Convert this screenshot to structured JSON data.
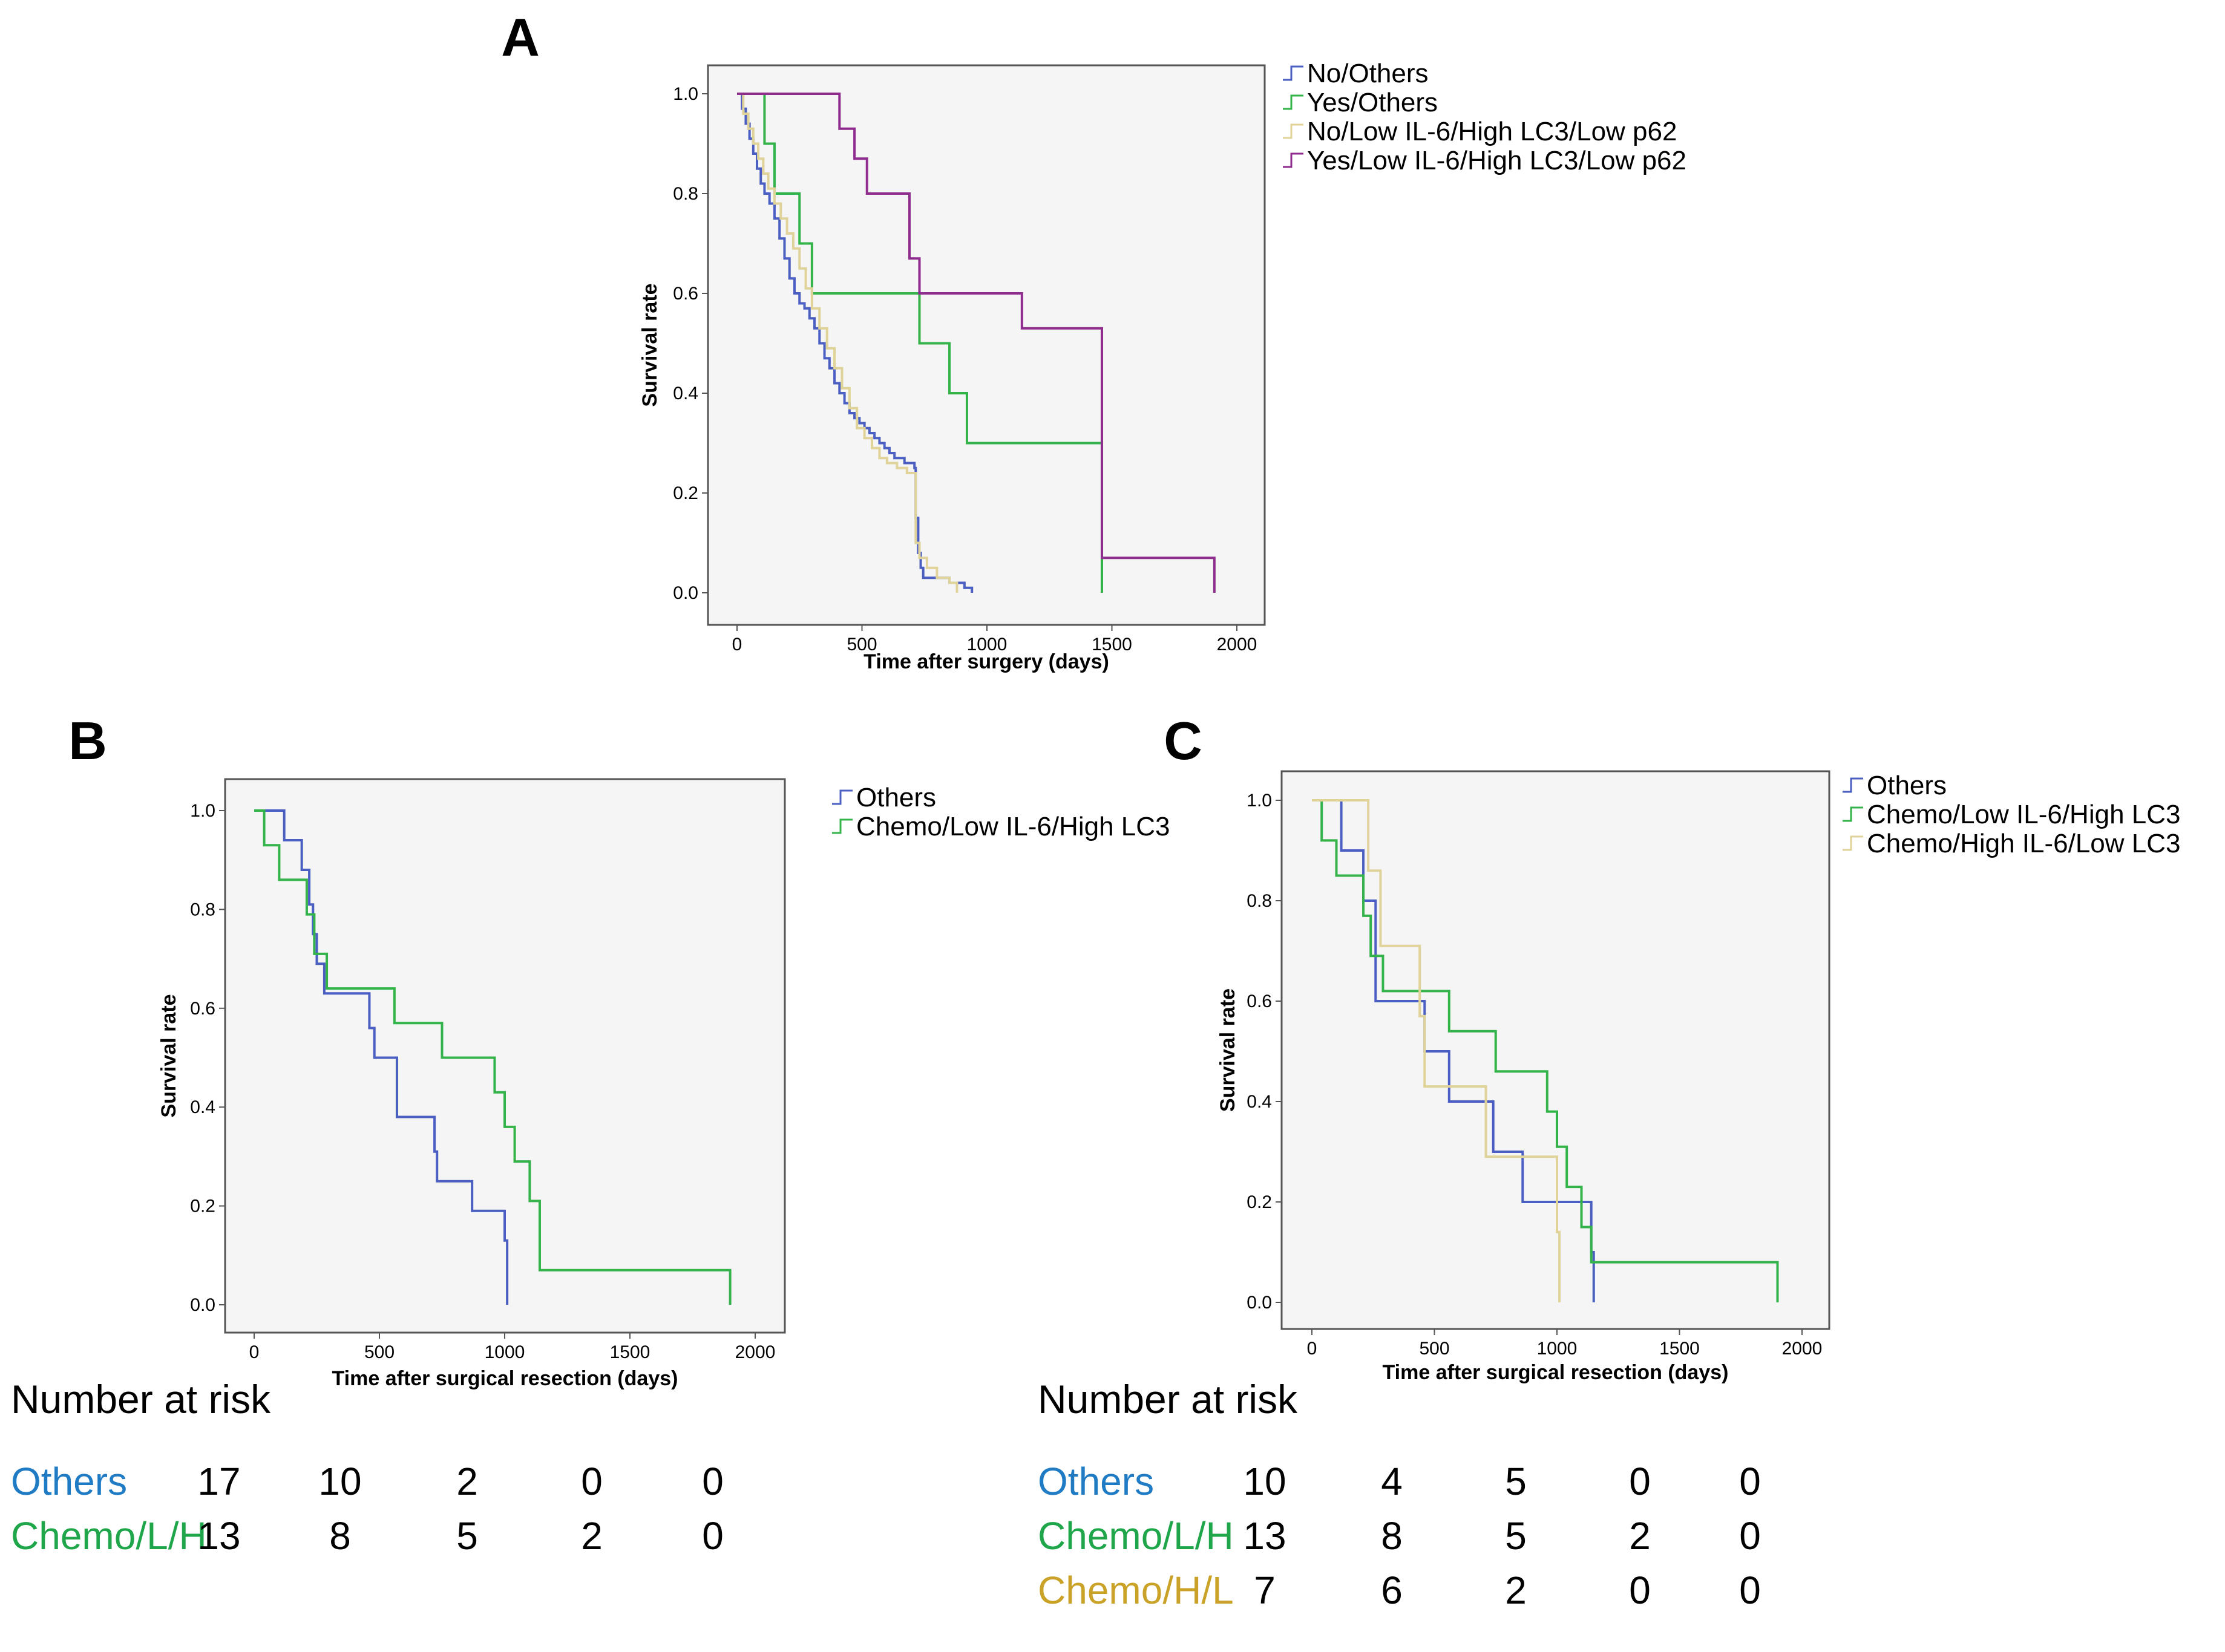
{
  "colors": {
    "blue": "#4a5fc1",
    "green": "#34b34a",
    "beige": "#e0d39a",
    "purple": "#8e2d8e",
    "panel_bg": "#f5f5f5",
    "risk_blue": "#1f7bc4",
    "risk_green": "#1fa64a",
    "risk_gold": "#c9a227"
  },
  "chart_data": [
    {
      "panel": "A",
      "type": "line",
      "subtype": "kaplan-meier step",
      "xlabel": "Time after surgery (days)",
      "ylabel": "Survival rate",
      "xlim": [
        0,
        2000
      ],
      "ylim": [
        0,
        1.0
      ],
      "xticks": [
        "0",
        "500",
        "1000",
        "1500",
        "2000"
      ],
      "yticks": [
        "0.0",
        "0.2",
        "0.4",
        "0.6",
        "0.8",
        "1.0"
      ],
      "legend_position": "right-outside-top",
      "series": [
        {
          "name": "No/Others",
          "color": "blue",
          "x": [
            0,
            20,
            35,
            50,
            65,
            80,
            95,
            110,
            130,
            150,
            170,
            190,
            210,
            230,
            250,
            270,
            290,
            310,
            330,
            350,
            370,
            390,
            410,
            430,
            450,
            470,
            490,
            510,
            530,
            550,
            570,
            590,
            610,
            630,
            650,
            670,
            690,
            710,
            715,
            725,
            735,
            745,
            800,
            850,
            880,
            910,
            940
          ],
          "y": [
            1.0,
            0.97,
            0.94,
            0.91,
            0.88,
            0.85,
            0.82,
            0.8,
            0.78,
            0.75,
            0.71,
            0.67,
            0.63,
            0.6,
            0.58,
            0.57,
            0.55,
            0.53,
            0.5,
            0.47,
            0.45,
            0.42,
            0.4,
            0.38,
            0.36,
            0.35,
            0.34,
            0.33,
            0.32,
            0.31,
            0.3,
            0.29,
            0.28,
            0.27,
            0.27,
            0.26,
            0.26,
            0.25,
            0.15,
            0.08,
            0.05,
            0.03,
            0.03,
            0.02,
            0.02,
            0.01,
            0.0
          ]
        },
        {
          "name": "Yes/Others",
          "color": "green",
          "x": [
            0,
            100,
            110,
            150,
            250,
            300,
            500,
            700,
            730,
            850,
            920,
            1450,
            1460
          ],
          "y": [
            1.0,
            1.0,
            0.9,
            0.8,
            0.7,
            0.6,
            0.6,
            0.6,
            0.5,
            0.4,
            0.3,
            0.3,
            0.0
          ]
        },
        {
          "name": "No/Low IL-6/High LC3/Low p62",
          "color": "beige",
          "x": [
            0,
            25,
            45,
            65,
            85,
            105,
            125,
            150,
            175,
            200,
            225,
            250,
            275,
            300,
            330,
            360,
            390,
            420,
            450,
            480,
            510,
            540,
            570,
            600,
            640,
            680,
            715,
            730,
            760,
            800,
            850,
            880
          ],
          "y": [
            1.0,
            0.96,
            0.93,
            0.9,
            0.87,
            0.84,
            0.81,
            0.78,
            0.75,
            0.72,
            0.69,
            0.65,
            0.61,
            0.57,
            0.53,
            0.49,
            0.45,
            0.41,
            0.37,
            0.33,
            0.31,
            0.29,
            0.27,
            0.26,
            0.25,
            0.24,
            0.1,
            0.07,
            0.05,
            0.03,
            0.02,
            0.0
          ]
        },
        {
          "name": "Yes/Low IL-6/High LC3/Low p62",
          "color": "purple",
          "x": [
            0,
            370,
            410,
            470,
            520,
            580,
            690,
            730,
            1000,
            1140,
            1450,
            1460,
            1900,
            1910
          ],
          "y": [
            1.0,
            1.0,
            0.93,
            0.87,
            0.8,
            0.8,
            0.67,
            0.6,
            0.6,
            0.53,
            0.53,
            0.07,
            0.07,
            0.0
          ]
        }
      ]
    },
    {
      "panel": "B",
      "type": "line",
      "subtype": "kaplan-meier step",
      "xlabel": "Time after surgical resection (days)",
      "ylabel": "Survival rate",
      "xlim": [
        0,
        2000
      ],
      "ylim": [
        0,
        1.0
      ],
      "xticks": [
        "0",
        "500",
        "1000",
        "1500",
        "2000"
      ],
      "yticks": [
        "0.0",
        "0.2",
        "0.4",
        "0.6",
        "0.8",
        "1.0"
      ],
      "legend_position": "right-outside-top",
      "series": [
        {
          "name": "Others",
          "color": "blue",
          "x": [
            0,
            120,
            190,
            220,
            235,
            250,
            280,
            460,
            480,
            570,
            720,
            730,
            870,
            1000,
            1010
          ],
          "y": [
            1.0,
            0.94,
            0.88,
            0.81,
            0.75,
            0.69,
            0.63,
            0.56,
            0.5,
            0.38,
            0.31,
            0.25,
            0.19,
            0.13,
            0.0
          ]
        },
        {
          "name": "Chemo/Low IL-6/High LC3",
          "color": "green",
          "x": [
            0,
            40,
            100,
            210,
            240,
            290,
            560,
            750,
            960,
            1000,
            1040,
            1100,
            1140,
            1890,
            1900
          ],
          "y": [
            1.0,
            0.93,
            0.86,
            0.79,
            0.71,
            0.64,
            0.57,
            0.5,
            0.43,
            0.36,
            0.29,
            0.21,
            0.07,
            0.07,
            0.0
          ]
        }
      ],
      "number_at_risk": {
        "title": "Number at risk",
        "rows": [
          {
            "label": "Others",
            "color": "risk_blue",
            "values": [
              "17",
              "10",
              "2",
              "0",
              "0"
            ]
          },
          {
            "label": "Chemo/L/H",
            "color": "risk_green",
            "values": [
              "13",
              "8",
              "5",
              "2",
              "0"
            ]
          }
        ]
      }
    },
    {
      "panel": "C",
      "type": "line",
      "subtype": "kaplan-meier step",
      "xlabel": "Time after surgical resection (days)",
      "ylabel": "Survival rate",
      "xlim": [
        0,
        2000
      ],
      "ylim": [
        0,
        1.0
      ],
      "xticks": [
        "0",
        "500",
        "1000",
        "1500",
        "2000"
      ],
      "yticks": [
        "0.0",
        "0.2",
        "0.4",
        "0.6",
        "0.8",
        "1.0"
      ],
      "legend_position": "right-outside-top",
      "series": [
        {
          "name": "Others",
          "color": "blue",
          "x": [
            0,
            120,
            210,
            260,
            460,
            560,
            740,
            860,
            1140,
            1150
          ],
          "y": [
            1.0,
            0.9,
            0.8,
            0.6,
            0.5,
            0.4,
            0.3,
            0.2,
            0.1,
            0.0
          ]
        },
        {
          "name": "Chemo/Low IL-6/High LC3",
          "color": "green",
          "x": [
            0,
            40,
            100,
            210,
            240,
            290,
            560,
            750,
            960,
            1000,
            1040,
            1100,
            1140,
            1890,
            1900
          ],
          "y": [
            1.0,
            0.92,
            0.85,
            0.77,
            0.69,
            0.62,
            0.54,
            0.46,
            0.38,
            0.31,
            0.23,
            0.15,
            0.08,
            0.08,
            0.0
          ]
        },
        {
          "name": "Chemo/High IL-6/Low LC3",
          "color": "beige",
          "x": [
            0,
            200,
            230,
            280,
            440,
            460,
            710,
            1000,
            1010
          ],
          "y": [
            1.0,
            1.0,
            0.86,
            0.71,
            0.57,
            0.43,
            0.29,
            0.14,
            0.0
          ]
        }
      ],
      "number_at_risk": {
        "title": "Number at risk",
        "rows": [
          {
            "label": "Others",
            "color": "risk_blue",
            "values": [
              "10",
              "4",
              "5",
              "0",
              "0"
            ]
          },
          {
            "label": "Chemo/L/H",
            "color": "risk_green",
            "values": [
              "13",
              "8",
              "5",
              "2",
              "0"
            ]
          },
          {
            "label": "Chemo/H/L",
            "color": "risk_gold",
            "values": [
              "7",
              "6",
              "2",
              "0",
              "0"
            ]
          }
        ]
      }
    }
  ]
}
